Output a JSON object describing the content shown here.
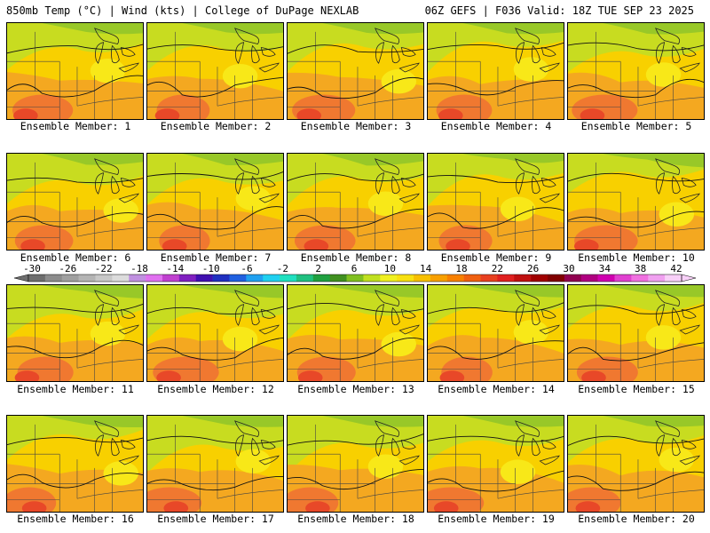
{
  "header": {
    "left": "850mb Temp (°C) | Wind (kts) | College of DuPage NEXLAB",
    "right": "06Z GEFS | F036 Valid: 18Z TUE SEP 23 2025"
  },
  "panels": [
    {
      "label": "Ensemble Member: 1"
    },
    {
      "label": "Ensemble Member: 2"
    },
    {
      "label": "Ensemble Member: 3"
    },
    {
      "label": "Ensemble Member: 4"
    },
    {
      "label": "Ensemble Member: 5"
    },
    {
      "label": "Ensemble Member: 6"
    },
    {
      "label": "Ensemble Member: 7"
    },
    {
      "label": "Ensemble Member: 8"
    },
    {
      "label": "Ensemble Member: 9"
    },
    {
      "label": "Ensemble Member: 10"
    },
    {
      "label": "Ensemble Member: 11"
    },
    {
      "label": "Ensemble Member: 12"
    },
    {
      "label": "Ensemble Member: 13"
    },
    {
      "label": "Ensemble Member: 14"
    },
    {
      "label": "Ensemble Member: 15"
    },
    {
      "label": "Ensemble Member: 16"
    },
    {
      "label": "Ensemble Member: 17"
    },
    {
      "label": "Ensemble Member: 18"
    },
    {
      "label": "Ensemble Member: 19"
    },
    {
      "label": "Ensemble Member: 20"
    }
  ],
  "colorbar": {
    "labels": [
      "-30",
      "-26",
      "-22",
      "-18",
      "-14",
      "-10",
      "-6",
      "-2",
      "2",
      "6",
      "10",
      "14",
      "18",
      "22",
      "26",
      "30",
      "34",
      "38",
      "42"
    ],
    "colors": [
      "#6e6e6e",
      "#8c8c8c",
      "#a0a0a0",
      "#b4b4b4",
      "#c8c8c8",
      "#dcdcdc",
      "#c090e0",
      "#e070f0",
      "#c040d0",
      "#8020c0",
      "#4010b0",
      "#2030c0",
      "#2060e0",
      "#20a0f0",
      "#20d0f0",
      "#20e0c0",
      "#20c080",
      "#20a040",
      "#409020",
      "#80c020",
      "#c0e020",
      "#f0f020",
      "#f8e010",
      "#f8c000",
      "#f8a000",
      "#f88000",
      "#f06010",
      "#e84020",
      "#e02020",
      "#c01010",
      "#a00000",
      "#800000",
      "#900050",
      "#b00080",
      "#d000b0",
      "#e040d0",
      "#f070e0",
      "#f0a0f0",
      "#f8d0f8"
    ]
  }
}
